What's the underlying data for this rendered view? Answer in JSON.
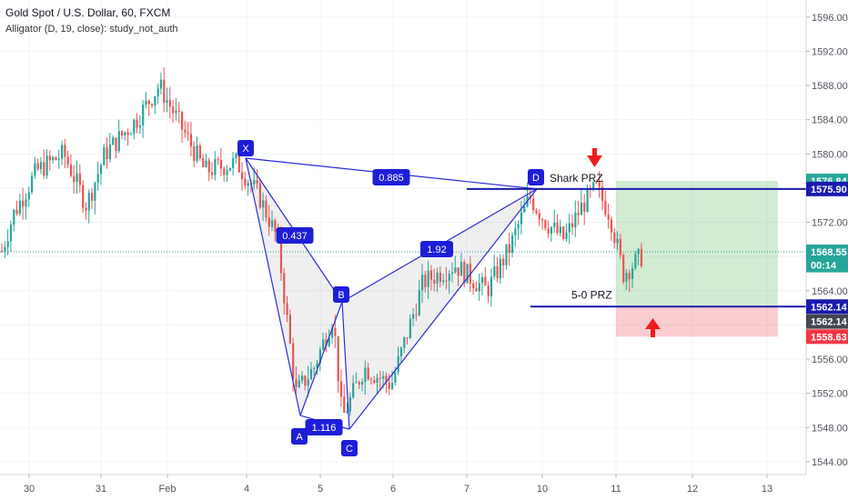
{
  "header": {
    "title": "Gold Spot / U.S. Dollar, 60, FXCM",
    "indicator": "Alligator (D, 19, close): study_not_auth"
  },
  "chart_data": {
    "type": "candlestick",
    "y_range": [
      1542.5,
      1598
    ],
    "y_ticks": [
      "1596.00",
      "1592.00",
      "1588.00",
      "1584.00",
      "1580.00",
      "1576.00",
      "1572.00",
      "1568.00",
      "1564.00",
      "1560.00",
      "1556.00",
      "1552.00",
      "1548.00",
      "1544.00"
    ],
    "x_ticks": [
      "30",
      "31",
      "Feb",
      "4",
      "5",
      "6",
      "7",
      "10",
      "11",
      "12",
      "13"
    ],
    "price_tags": [
      {
        "text": "1576.84",
        "price": 1576.84,
        "color": "#26a69a"
      },
      {
        "text": "1575.90",
        "price": 1575.9,
        "color": "#1a1aaf"
      },
      {
        "text": "1568.55",
        "price": 1568.55,
        "color": "#26a69a"
      },
      {
        "text": "00:14",
        "price": 1567.0,
        "color": "#26a69a"
      },
      {
        "text": "1562.14",
        "price": 1562.14,
        "color": "#1a1aaf"
      },
      {
        "text": "1562.14",
        "price": 1560.4,
        "color": "#434651"
      },
      {
        "text": "1558.63",
        "price": 1558.63,
        "color": "#f23645"
      }
    ],
    "current_price": 1568.55,
    "pattern": {
      "points": [
        {
          "name": "X",
          "bar": 264,
          "price": 1579.5
        },
        {
          "name": "A",
          "bar": 320,
          "price": 1549.4
        },
        {
          "name": "B",
          "bar": 366,
          "price": 1562.7
        },
        {
          "name": "C",
          "bar": 376,
          "price": 1547.8
        },
        {
          "name": "D",
          "bar": 582,
          "price": 1575.9
        }
      ],
      "ratios": [
        "0.885",
        "0.437",
        "1.92",
        "1.116"
      ]
    },
    "levels": [
      {
        "label": "Shark PRZ",
        "price": 1575.9
      },
      {
        "label": "5-0 PRZ",
        "price": 1562.14
      }
    ],
    "target_zone": [
      1562.14,
      1576.84
    ],
    "stop_zone": [
      1558.63,
      1562.14
    ]
  }
}
